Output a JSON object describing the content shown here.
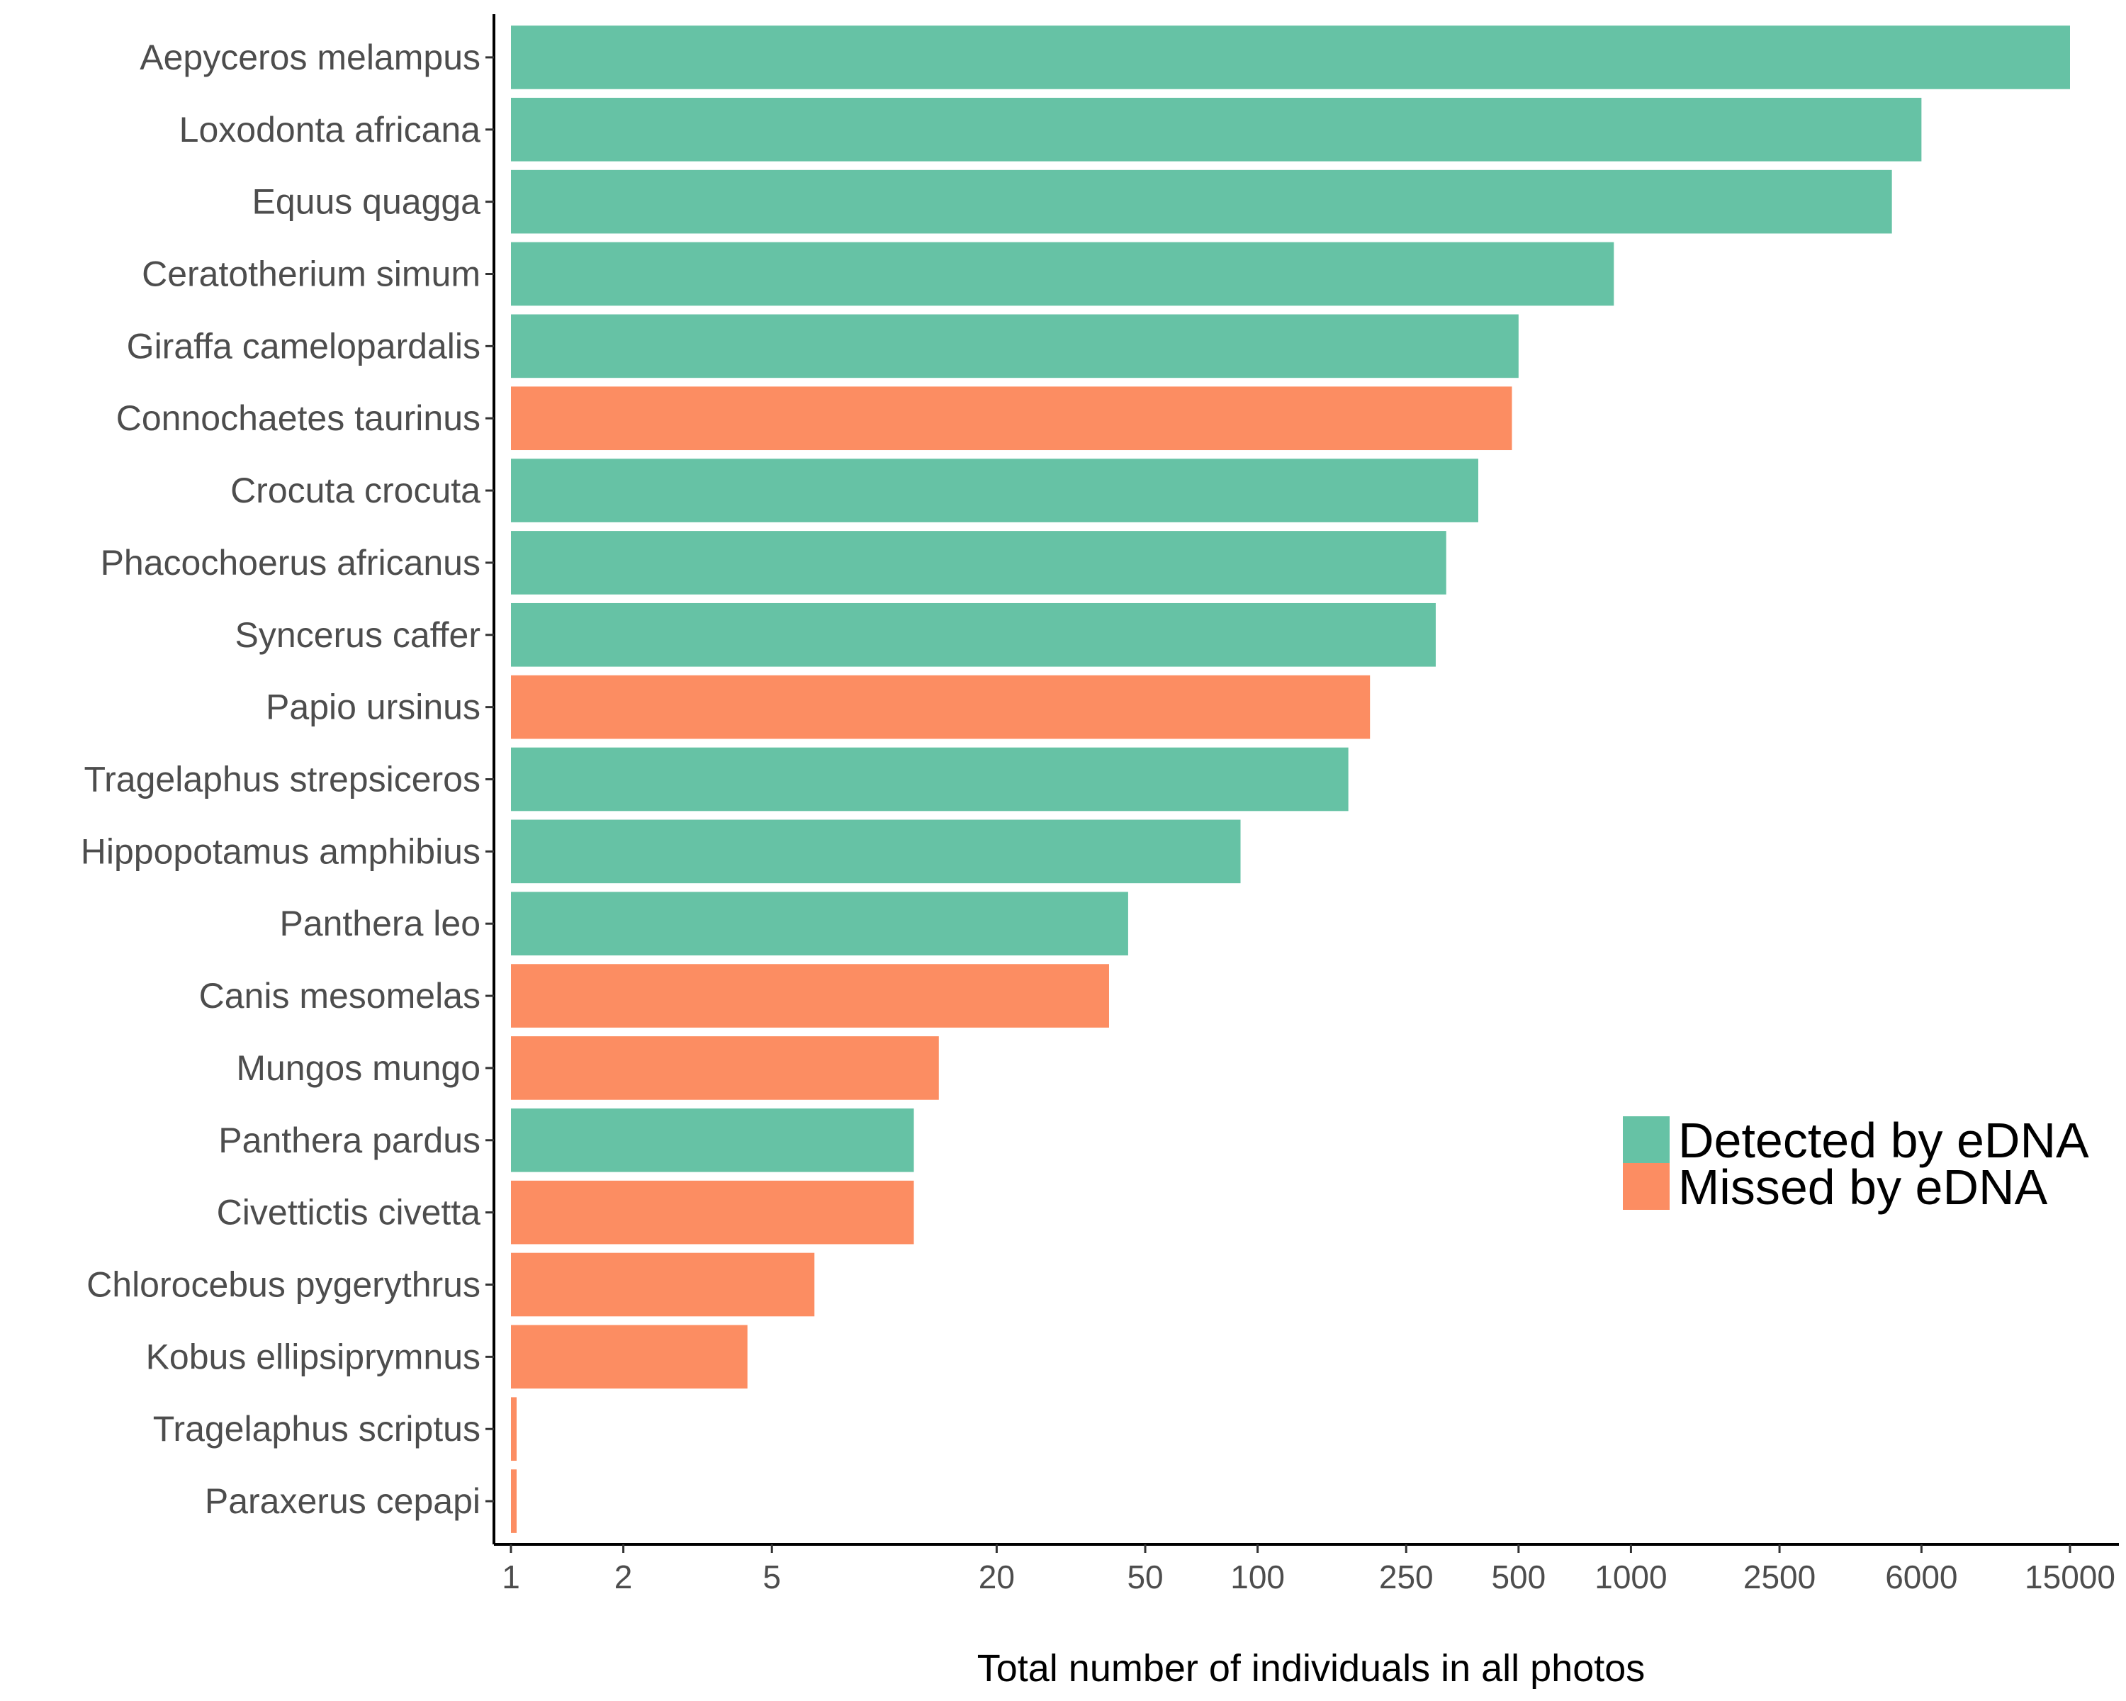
{
  "chart_data": {
    "type": "bar",
    "orientation": "horizontal",
    "title": "",
    "xlabel": "Total number of individuals in all photos",
    "ylabel": "",
    "xscale": "log",
    "xlim": [
      1,
      15000
    ],
    "xticks": [
      1,
      2,
      5,
      20,
      50,
      100,
      250,
      500,
      1000,
      2500,
      6000,
      15000
    ],
    "xtick_labels": [
      "1",
      "2",
      "5",
      "20",
      "50",
      "100",
      "250",
      "500",
      "1000",
      "2500",
      "6000",
      "15000"
    ],
    "grid": false,
    "legend_position": "right",
    "legend": [
      {
        "label": "Detected by eDNA",
        "color": "#66c2a5"
      },
      {
        "label": "Missed by eDNA",
        "color": "#fc8d62"
      }
    ],
    "categories": [
      "Aepyceros melampus",
      "Loxodonta africana",
      "Equus quagga",
      "Ceratotherium simum",
      "Giraffa camelopardalis",
      "Connochaetes taurinus",
      "Crocuta crocuta",
      "Phacochoerus africanus",
      "Syncerus caffer",
      "Papio ursinus",
      "Tragelaphus strepsiceros",
      "Hippopotamus amphibius",
      "Panthera leo",
      "Canis mesomelas",
      "Mungos mungo",
      "Panthera pardus",
      "Civettictis civetta",
      "Chlorocebus pygerythrus",
      "Kobus ellipsiprymnus",
      "Tragelaphus scriptus",
      "Paraxerus cepapi"
    ],
    "values": [
      15000,
      6000,
      5000,
      900,
      500,
      480,
      390,
      320,
      300,
      200,
      175,
      90,
      45,
      40,
      14,
      12,
      12,
      6.5,
      4.3,
      1,
      1
    ],
    "status": [
      "Detected by eDNA",
      "Detected by eDNA",
      "Detected by eDNA",
      "Detected by eDNA",
      "Detected by eDNA",
      "Missed by eDNA",
      "Detected by eDNA",
      "Detected by eDNA",
      "Detected by eDNA",
      "Missed by eDNA",
      "Detected by eDNA",
      "Detected by eDNA",
      "Detected by eDNA",
      "Missed by eDNA",
      "Missed by eDNA",
      "Detected by eDNA",
      "Missed by eDNA",
      "Missed by eDNA",
      "Missed by eDNA",
      "Missed by eDNA",
      "Missed by eDNA"
    ]
  }
}
